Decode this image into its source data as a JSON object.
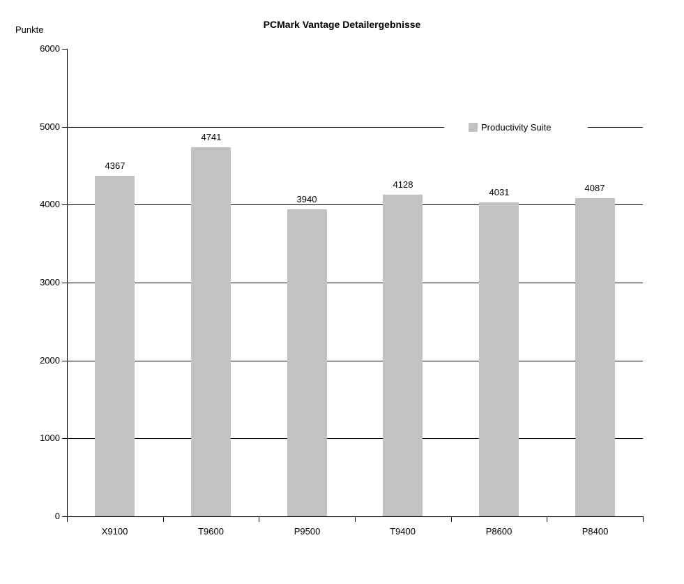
{
  "chart_data": {
    "type": "bar",
    "title": "PCMark Vantage Detailergebnisse",
    "ylabel": "Punkte",
    "xlabel": "",
    "categories": [
      "X9100",
      "T9600",
      "P9500",
      "T9400",
      "P8600",
      "P8400"
    ],
    "series": [
      {
        "name": "Productivity Suite",
        "values": [
          4367,
          4741,
          3940,
          4128,
          4031,
          4087
        ]
      }
    ],
    "value_labels": [
      4367,
      4741,
      3940,
      4128,
      4031,
      4087
    ],
    "ylim": [
      0,
      6000
    ],
    "yticks": [
      0,
      1000,
      2000,
      3000,
      4000,
      5000,
      6000
    ],
    "grid": true,
    "legend_position": "inside-upper-right",
    "colors": {
      "bar": "#c2c2c2",
      "axis": "#000000",
      "gridline": "#000000",
      "background": "#ffffff",
      "text": "#000000"
    }
  }
}
